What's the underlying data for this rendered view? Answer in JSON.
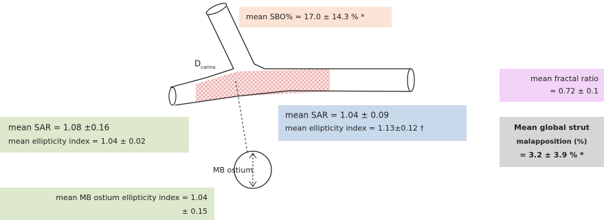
{
  "labels": {
    "sbo": "mean SBO% = 17.0 ± 14.3 % *",
    "d_carina": {
      "main": "D",
      "sub": "carina"
    },
    "fractal": [
      "mean fractal ratio",
      "= 0.72 ± 0.1"
    ],
    "prox": [
      "mean SAR = 1.08 ±0.16",
      "mean ellipticity index = 1.04 ± 0.02"
    ],
    "dist": [
      "mean SAR = 1.04 ± 0.09",
      "mean ellipticity index = 1.13±0.12 †"
    ],
    "strut": [
      "Mean global strut",
      "malapposition (%)",
      "= 3.2 ± 3.9 % *"
    ],
    "mb_ostium": "MB ostium",
    "ostium_ellip": [
      "mean MB ostium ellipticity index = 1.04",
      "± 0.15"
    ]
  }
}
